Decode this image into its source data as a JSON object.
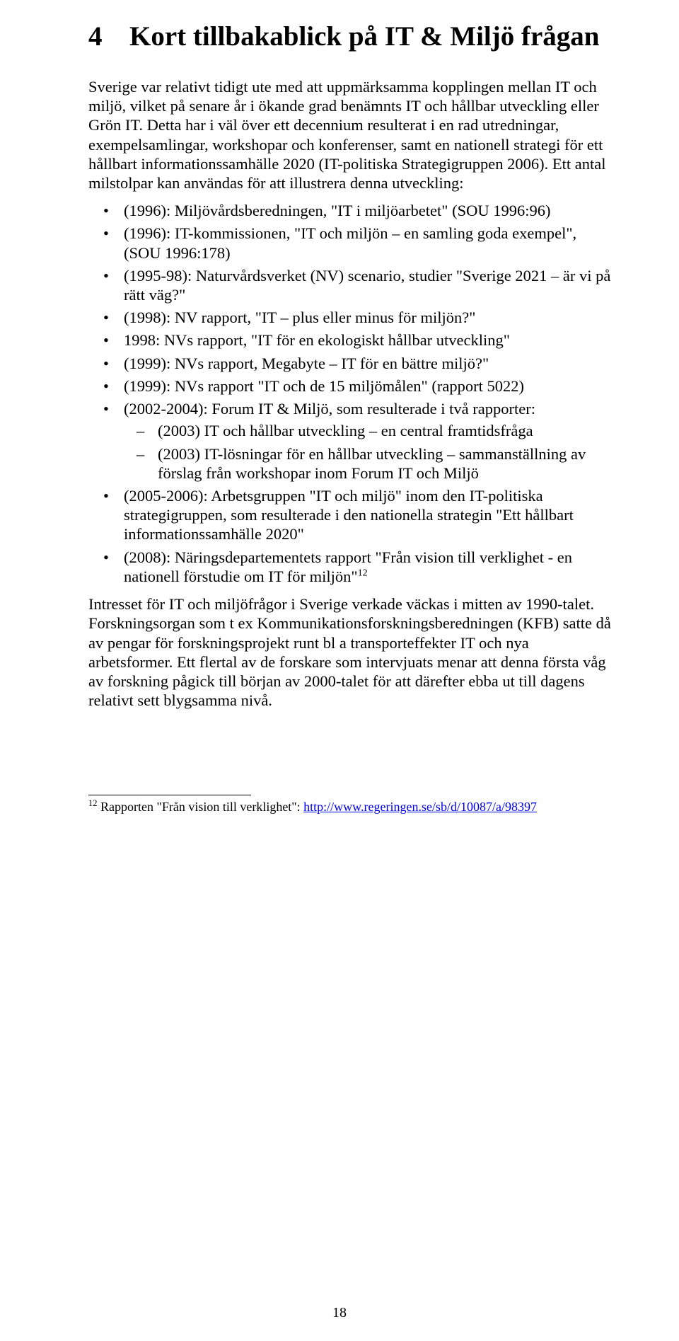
{
  "heading": {
    "number": "4",
    "title": "Kort tillbakablick på IT & Miljö frågan"
  },
  "para1": "Sverige var relativt tidigt ute med att uppmärksamma kopplingen mellan IT och miljö, vilket på senare år i ökande grad benämnts IT och hållbar utveckling eller Grön IT. Detta har i väl över ett decennium resulterat i en rad utredningar, exempelsamlingar, workshopar och konferenser, samt en nationell strategi för ett hållbart informationssamhälle 2020 (IT-politiska Strategigruppen 2006). Ett antal milstolpar kan användas för att illustrera denna utveckling:",
  "bullets": [
    {
      "text": "(1996): Miljövårdsberedningen, \"IT i miljöarbetet\" (SOU 1996:96)"
    },
    {
      "text": "(1996): IT-kommissionen, \"IT och miljön – en samling goda exempel\", (SOU 1996:178)"
    },
    {
      "text": "(1995-98): Naturvårdsverket (NV) scenario, studier \"Sverige 2021 – är vi på rätt väg?\""
    },
    {
      "text": "(1998): NV rapport, \"IT – plus eller minus för miljön?\""
    },
    {
      "text": "1998: NVs rapport, \"IT för en ekologiskt hållbar utveckling\""
    },
    {
      "text": "(1999): NVs rapport, Megabyte – IT för en bättre miljö?\""
    },
    {
      "text": "(1999): NVs rapport \"IT och de 15 miljömålen\" (rapport 5022)"
    },
    {
      "text": "(2002-2004): Forum IT & Miljö, som resulterade i två rapporter:",
      "sub": [
        "(2003) IT och hållbar utveckling – en central framtidsfråga",
        "(2003) IT-lösningar för en hållbar utveckling – sammanställning av förslag från workshopar inom Forum IT och Miljö"
      ]
    },
    {
      "text": "(2005-2006): Arbetsgruppen \"IT och miljö\" inom den IT-politiska strategigruppen, som resulterade i den nationella strategin \"Ett hållbart informationssamhälle 2020\""
    },
    {
      "text": "(2008): Näringsdepartementets rapport \"Från vision till verklighet - en nationell förstudie om IT för miljön\"",
      "sup": "12"
    }
  ],
  "para2": "Intresset för IT och miljöfrågor i Sverige verkade väckas i mitten av 1990-talet. Forskningsorgan som t ex Kommunikationsforskningsberedningen (KFB) satte då av pengar för forskningsprojekt runt bl a transporteffekter IT och nya arbetsformer. Ett flertal av de forskare som intervjuats menar att denna första våg av forskning pågick till början av 2000-talet för att därefter ebba ut till dagens relativt sett blygsamma nivå.",
  "footnote": {
    "num": "12",
    "text_prefix": " Rapporten \"Från vision till verklighet\": ",
    "link_text": "http://www.regeringen.se/sb/d/10087/a/98397"
  },
  "page_number": "18"
}
